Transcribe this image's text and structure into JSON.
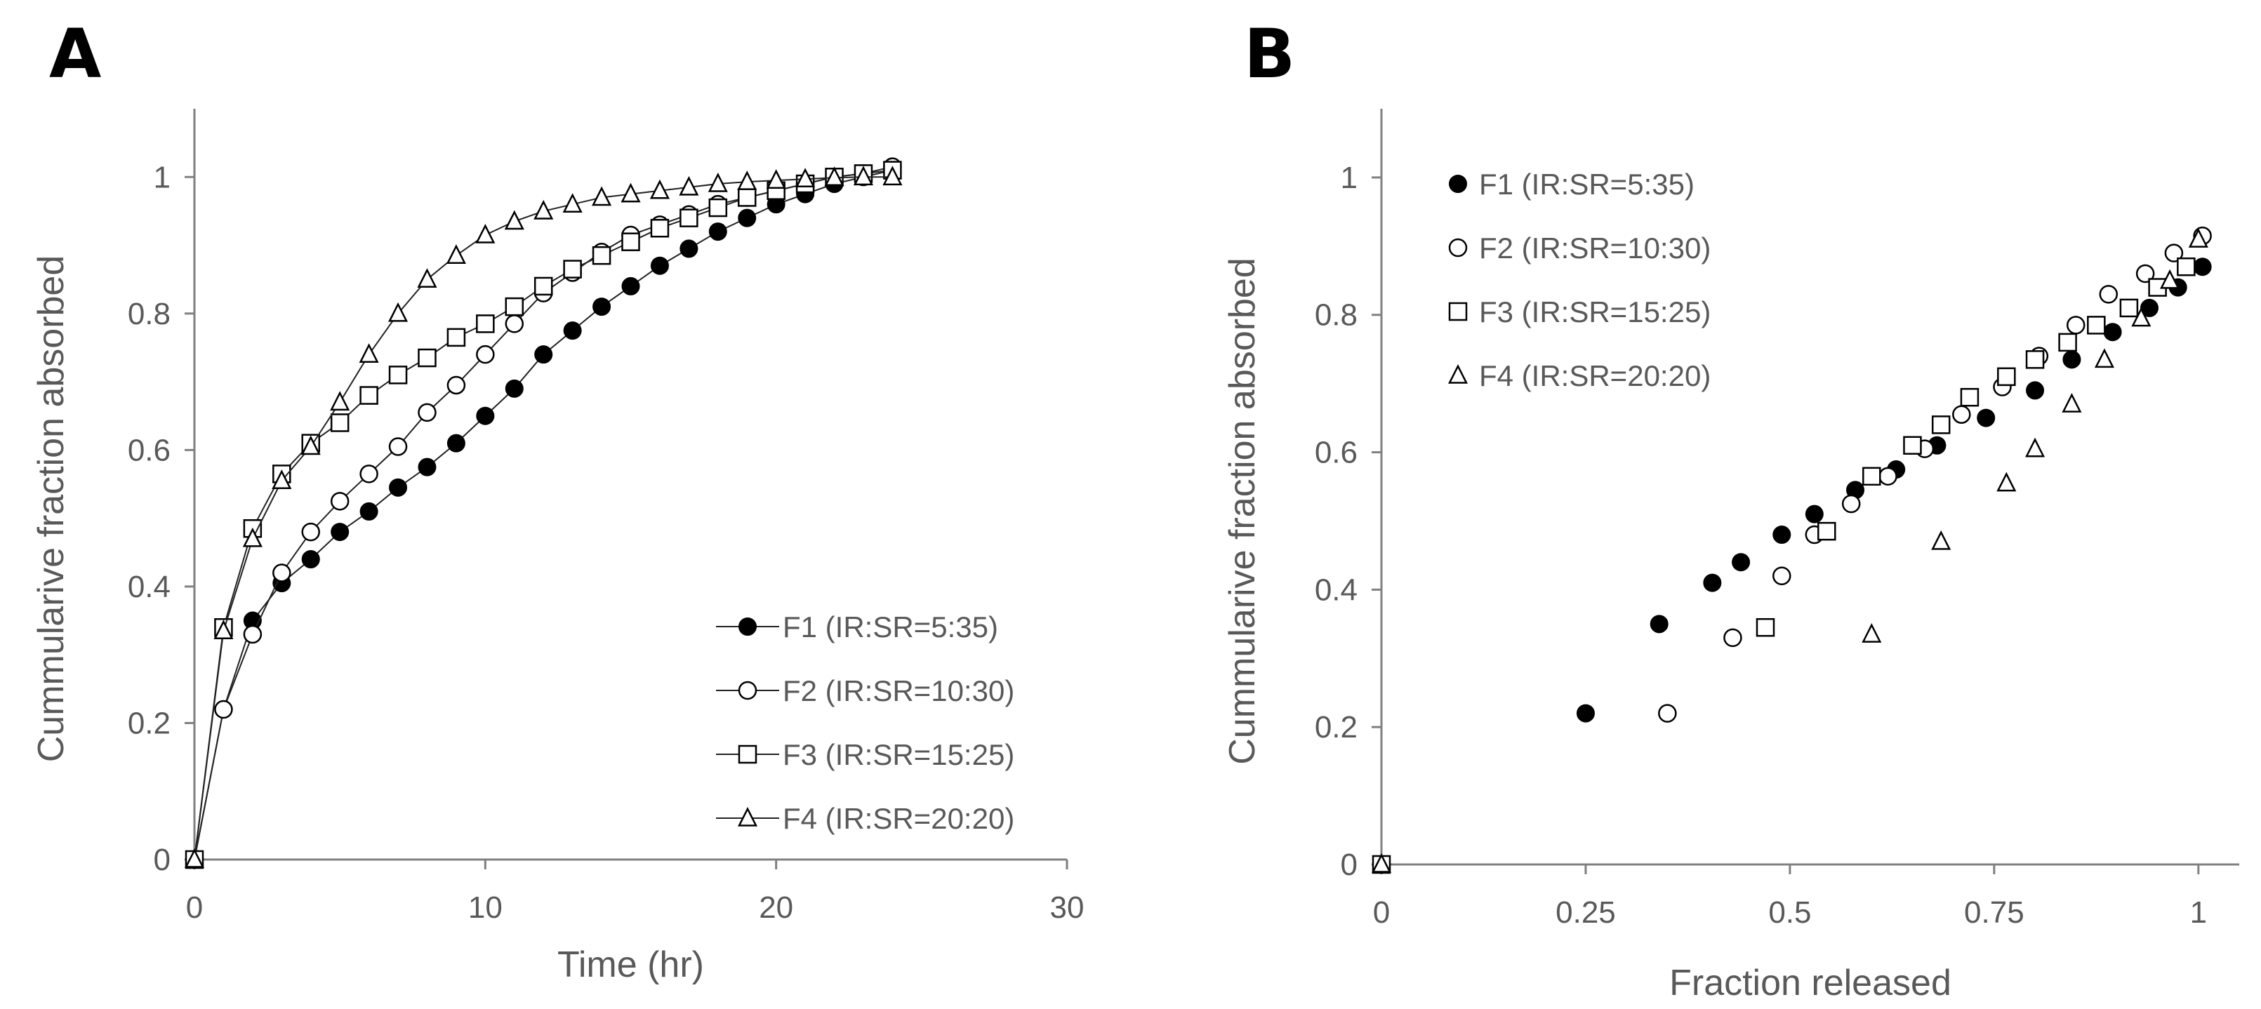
{
  "chart_data": [
    {
      "panel_label": "A",
      "type": "line",
      "title": "",
      "xlabel": "Time  (hr)",
      "ylabel": "Cummularive  fraction absorbed",
      "xlim": [
        0,
        30
      ],
      "ylim": [
        0,
        1.1
      ],
      "xticks": [
        0,
        10,
        20,
        30
      ],
      "yticks": [
        0,
        0.2,
        0.4,
        0.6,
        0.8,
        1
      ],
      "xtick_labels": [
        "0",
        "10",
        "20",
        "30"
      ],
      "ytick_labels": [
        "0",
        "0.2",
        "0.4",
        "0.6",
        "0.8",
        "1"
      ],
      "grid": false,
      "legend_position": "bottom-right",
      "x": [
        0,
        1,
        2,
        3,
        4,
        5,
        6,
        7,
        8,
        9,
        10,
        11,
        12,
        13,
        14,
        15,
        16,
        17,
        18,
        19,
        20,
        21,
        22,
        23,
        24
      ],
      "series": [
        {
          "name": "F1 (IR:SR=5:35)",
          "marker": "filled-circle",
          "values": [
            0,
            0.22,
            0.35,
            0.405,
            0.44,
            0.48,
            0.51,
            0.545,
            0.575,
            0.61,
            0.65,
            0.69,
            0.74,
            0.775,
            0.81,
            0.84,
            0.87,
            0.895,
            0.92,
            0.94,
            0.96,
            0.975,
            0.99,
            1.0,
            1.01
          ]
        },
        {
          "name": "F2 (IR:SR=10:30)",
          "marker": "open-circle",
          "values": [
            0,
            0.22,
            0.33,
            0.42,
            0.48,
            0.525,
            0.565,
            0.605,
            0.655,
            0.695,
            0.74,
            0.785,
            0.83,
            0.86,
            0.89,
            0.915,
            0.93,
            0.945,
            0.96,
            0.97,
            0.98,
            0.99,
            1.0,
            1.005,
            1.015
          ]
        },
        {
          "name": "F3 (IR:SR=15:25)",
          "marker": "open-square",
          "values": [
            0,
            0.34,
            0.485,
            0.565,
            0.61,
            0.64,
            0.68,
            0.71,
            0.735,
            0.765,
            0.785,
            0.81,
            0.84,
            0.865,
            0.885,
            0.905,
            0.925,
            0.94,
            0.955,
            0.97,
            0.98,
            0.99,
            1.0,
            1.005,
            1.01
          ]
        },
        {
          "name": "F4 (IR:SR=20:20)",
          "marker": "open-triangle",
          "values": [
            0,
            0.335,
            0.47,
            0.555,
            0.605,
            0.67,
            0.74,
            0.8,
            0.85,
            0.885,
            0.915,
            0.935,
            0.95,
            0.96,
            0.97,
            0.975,
            0.98,
            0.985,
            0.99,
            0.993,
            0.995,
            0.997,
            0.999,
            1.0,
            1.0
          ]
        }
      ]
    },
    {
      "panel_label": "B",
      "type": "scatter",
      "title": "",
      "xlabel": "Fraction released",
      "ylabel": "Cummularive  fraction absorbed",
      "xlim": [
        0,
        1.05
      ],
      "ylim": [
        0,
        1.1
      ],
      "xticks": [
        0,
        0.25,
        0.5,
        0.75,
        1
      ],
      "yticks": [
        0,
        0.2,
        0.4,
        0.6,
        0.8,
        1
      ],
      "xtick_labels": [
        "0",
        "0.25",
        "0.5",
        "0.75",
        "1"
      ],
      "ytick_labels": [
        "0",
        "0.2",
        "0.4",
        "0.6",
        "0.8",
        "1"
      ],
      "grid": false,
      "legend_position": "top-left",
      "series": [
        {
          "name": "F1 (IR:SR=5:35)",
          "marker": "filled-circle",
          "x": [
            0,
            0.25,
            0.34,
            0.405,
            0.44,
            0.49,
            0.53,
            0.58,
            0.63,
            0.68,
            0.74,
            0.8,
            0.845,
            0.895,
            0.94,
            0.975,
            1.005
          ],
          "y": [
            0,
            0.22,
            0.35,
            0.41,
            0.44,
            0.48,
            0.51,
            0.545,
            0.575,
            0.61,
            0.65,
            0.69,
            0.735,
            0.775,
            0.81,
            0.84,
            0.87
          ]
        },
        {
          "name": "F2 (IR:SR=10:30)",
          "marker": "open-circle",
          "x": [
            0,
            0.35,
            0.43,
            0.49,
            0.53,
            0.575,
            0.62,
            0.665,
            0.71,
            0.76,
            0.805,
            0.85,
            0.89,
            0.935,
            0.97,
            1.005
          ],
          "y": [
            0,
            0.22,
            0.33,
            0.42,
            0.48,
            0.525,
            0.565,
            0.605,
            0.655,
            0.695,
            0.74,
            0.785,
            0.83,
            0.86,
            0.89,
            0.915
          ]
        },
        {
          "name": "F3 (IR:SR=15:25)",
          "marker": "open-square",
          "x": [
            0,
            0.47,
            0.545,
            0.6,
            0.65,
            0.685,
            0.72,
            0.765,
            0.8,
            0.84,
            0.875,
            0.915,
            0.95,
            0.985
          ],
          "y": [
            0,
            0.345,
            0.485,
            0.565,
            0.61,
            0.64,
            0.68,
            0.71,
            0.735,
            0.76,
            0.785,
            0.81,
            0.84,
            0.87
          ]
        },
        {
          "name": "F4 (IR:SR=20:20)",
          "marker": "open-triangle",
          "x": [
            0,
            0.6,
            0.685,
            0.765,
            0.8,
            0.845,
            0.885,
            0.93,
            0.965,
            1.0
          ],
          "y": [
            0,
            0.335,
            0.47,
            0.555,
            0.605,
            0.67,
            0.735,
            0.795,
            0.85,
            0.91
          ]
        }
      ]
    }
  ],
  "colors": {
    "axis": "#808080",
    "series_line": "#222222",
    "text": "#595959",
    "label": "#000000"
  }
}
